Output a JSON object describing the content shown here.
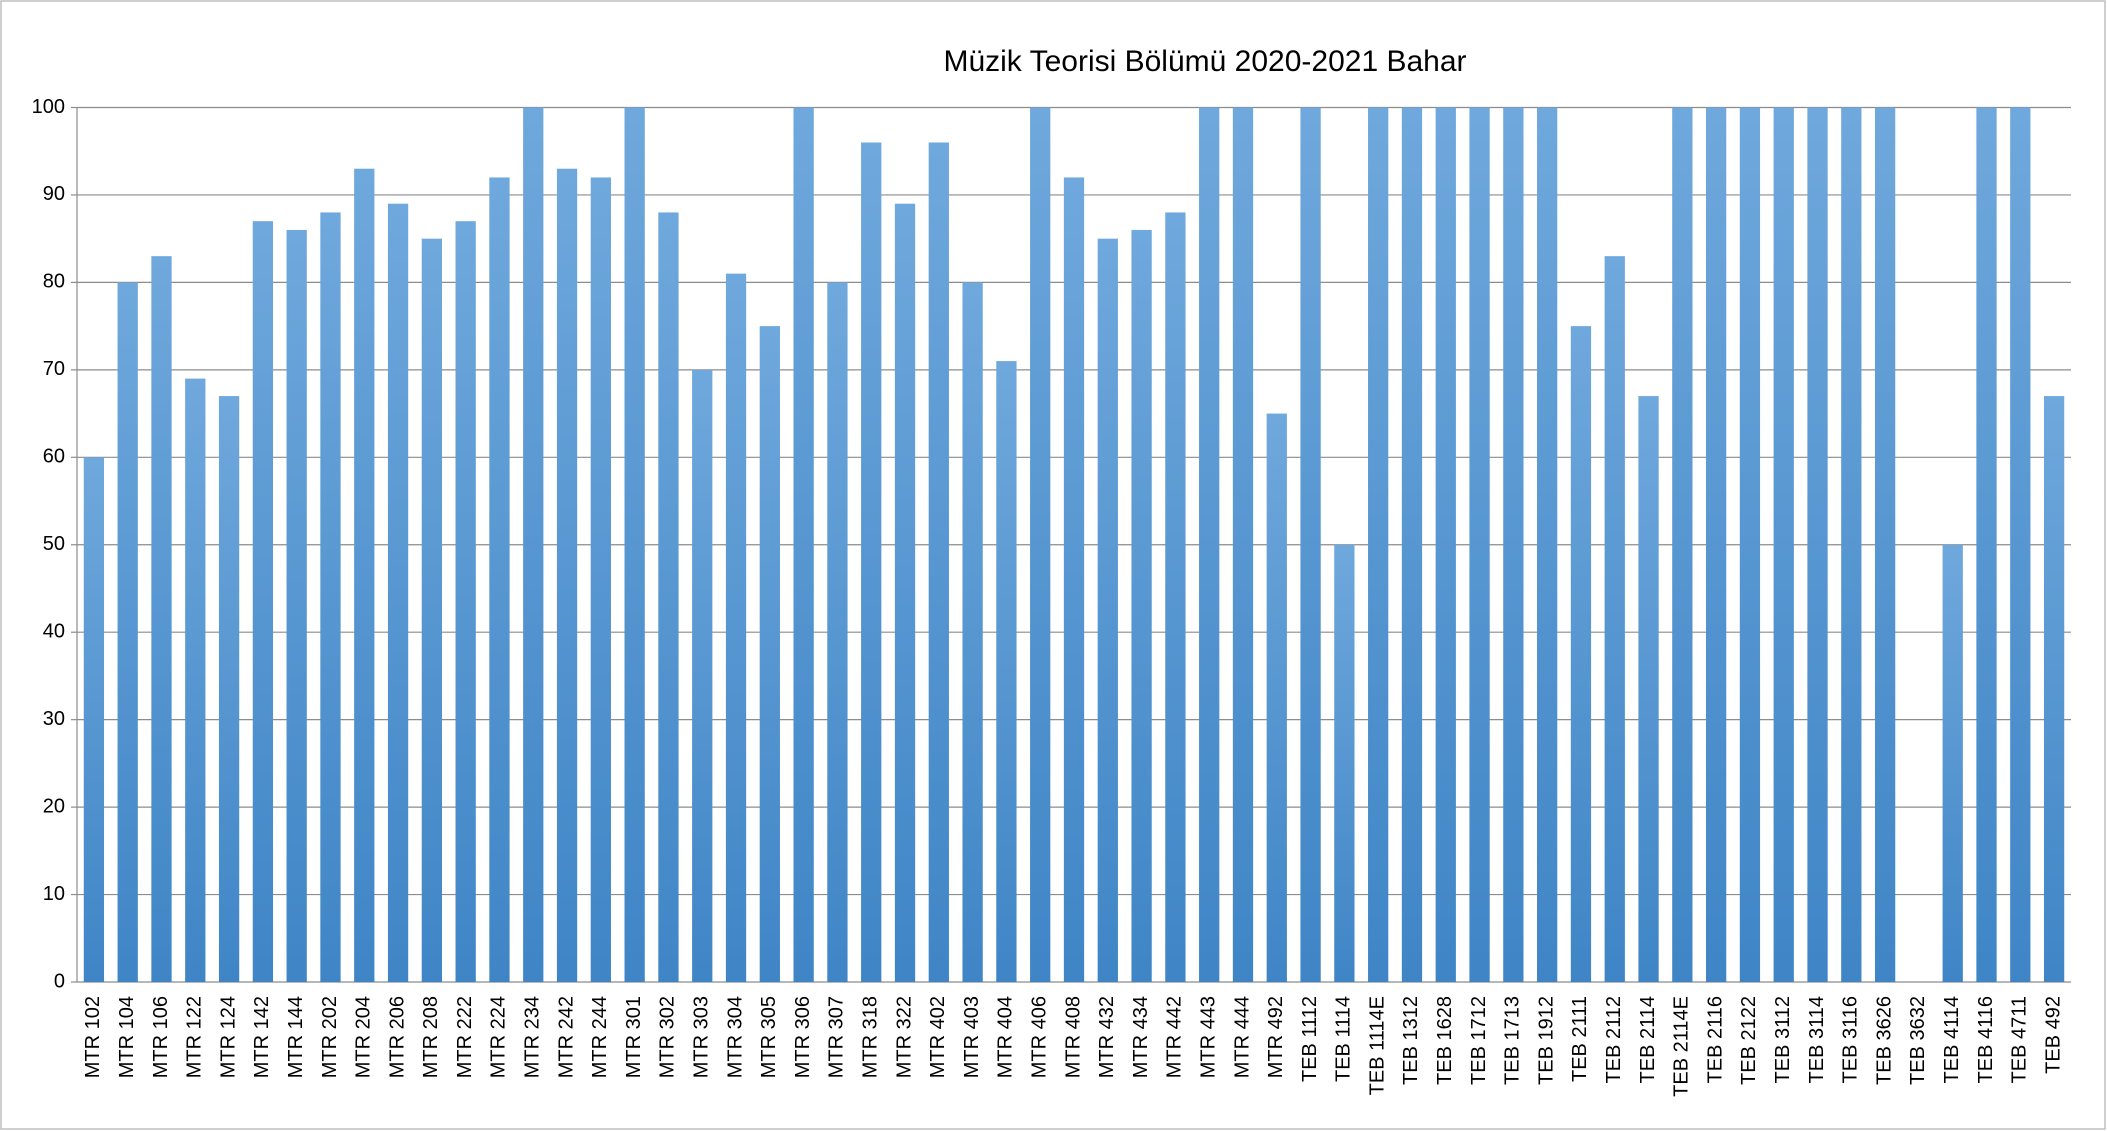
{
  "chart_data": {
    "type": "bar",
    "title": "Müzik Teorisi Bölümü 2020-2021 Bahar",
    "categories": [
      "MTR 102",
      "MTR 104",
      "MTR 106",
      "MTR 122",
      "MTR 124",
      "MTR 142",
      "MTR 144",
      "MTR 202",
      "MTR 204",
      "MTR 206",
      "MTR 208",
      "MTR 222",
      "MTR 224",
      "MTR 234",
      "MTR 242",
      "MTR 244",
      "MTR 301",
      "MTR 302",
      "MTR 303",
      "MTR 304",
      "MTR 305",
      "MTR 306",
      "MTR 307",
      "MTR 318",
      "MTR 322",
      "MTR 402",
      "MTR 403",
      "MTR 404",
      "MTR 406",
      "MTR 408",
      "MTR 432",
      "MTR 434",
      "MTR 442",
      "MTR 443",
      "MTR 444",
      "MTR 492",
      "TEB 1112",
      "TEB 1114",
      "TEB 1114E",
      "TEB 1312",
      "TEB 1628",
      "TEB 1712",
      "TEB 1713",
      "TEB 1912",
      "TEB 2111",
      "TEB 2112",
      "TEB 2114",
      "TEB 2114E",
      "TEB 2116",
      "TEB 2122",
      "TEB 3112",
      "TEB 3114",
      "TEB 3116",
      "TEB 3626",
      "TEB 3632",
      "TEB 4114",
      "TEB 4116",
      "TEB 4711",
      "TEB 492"
    ],
    "values": [
      60,
      80,
      83,
      69,
      67,
      87,
      86,
      88,
      93,
      89,
      85,
      87,
      92,
      100,
      93,
      92,
      100,
      88,
      70,
      81,
      75,
      100,
      80,
      96,
      89,
      96,
      80,
      71,
      100,
      92,
      85,
      86,
      88,
      100,
      100,
      65,
      100,
      50,
      100,
      100,
      100,
      100,
      100,
      100,
      75,
      83,
      67,
      100,
      100,
      100,
      100,
      100,
      100,
      100,
      0,
      50,
      100,
      100,
      67
    ],
    "color": "#5b9bd5",
    "ylim": [
      0,
      100
    ],
    "yticks": [
      0,
      10,
      20,
      30,
      40,
      50,
      60,
      70,
      80,
      90,
      100
    ],
    "grid": true
  }
}
